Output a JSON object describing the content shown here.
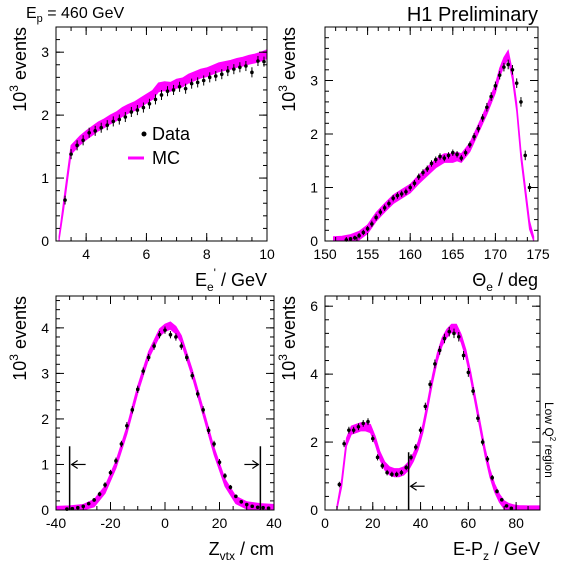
{
  "header": {
    "beam_energy": "E",
    "beam_energy_sub": "p",
    "beam_energy_value": " = 460 GeV",
    "preliminary": "H1 Preliminary",
    "side_note_a": "Low Q",
    "side_note_sup": "2",
    "side_note_b": " region"
  },
  "colors": {
    "mc": "#ff00ff",
    "data": "#000000",
    "cut_line": "#000000"
  },
  "chart_data": [
    {
      "type": "line",
      "name": "electron-energy",
      "xlabel": {
        "main": "E",
        "sub": "e",
        "sup": "'",
        "rest": " / GeV"
      },
      "ylabel": {
        "main": "10",
        "sup": "3",
        "rest": " events"
      },
      "xlim": [
        3,
        10
      ],
      "ylim": [
        0,
        3.4
      ],
      "xticks": [
        4,
        6,
        8,
        10
      ],
      "yticks": [
        0,
        1,
        2,
        3
      ],
      "legend": {
        "data_label": "Data",
        "mc_label": "MC",
        "placement": "middle-left"
      },
      "mc": {
        "x": [
          3.1,
          3.25,
          3.4,
          3.5,
          3.6,
          3.8,
          4.0,
          4.2,
          4.4,
          4.6,
          4.8,
          5.0,
          5.2,
          5.4,
          5.6,
          5.8,
          6.0,
          6.2,
          6.4,
          6.6,
          6.8,
          7.0,
          7.2,
          7.4,
          7.6,
          7.8,
          8.0,
          8.2,
          8.4,
          8.6,
          8.8,
          9.0,
          9.2,
          9.4,
          9.6,
          9.8,
          10.0
        ],
        "y": [
          0.0,
          0.55,
          1.1,
          1.45,
          1.5,
          1.6,
          1.68,
          1.75,
          1.82,
          1.87,
          1.93,
          1.98,
          2.05,
          2.1,
          2.14,
          2.2,
          2.26,
          2.32,
          2.44,
          2.46,
          2.45,
          2.5,
          2.52,
          2.58,
          2.62,
          2.66,
          2.68,
          2.72,
          2.76,
          2.78,
          2.8,
          2.83,
          2.85,
          2.88,
          2.9,
          2.93,
          2.97
        ],
        "band": 0.07
      },
      "data": {
        "x": [
          3.3,
          3.5,
          3.7,
          3.9,
          4.1,
          4.3,
          4.5,
          4.7,
          4.9,
          5.1,
          5.3,
          5.5,
          5.7,
          5.9,
          6.1,
          6.3,
          6.5,
          6.7,
          6.9,
          7.1,
          7.3,
          7.5,
          7.7,
          7.9,
          8.1,
          8.3,
          8.5,
          8.7,
          8.9,
          9.1,
          9.3,
          9.5,
          9.7,
          9.9
        ],
        "y": [
          0.65,
          1.38,
          1.52,
          1.6,
          1.72,
          1.75,
          1.8,
          1.84,
          1.9,
          1.93,
          1.97,
          2.05,
          2.08,
          2.12,
          2.18,
          2.25,
          2.32,
          2.38,
          2.4,
          2.45,
          2.42,
          2.5,
          2.52,
          2.55,
          2.6,
          2.62,
          2.65,
          2.7,
          2.73,
          2.76,
          2.78,
          2.68,
          2.86,
          2.85
        ],
        "err": [
          0.07,
          0.08,
          0.08,
          0.08,
          0.08,
          0.08,
          0.08,
          0.08,
          0.08,
          0.08,
          0.08,
          0.08,
          0.08,
          0.08,
          0.08,
          0.08,
          0.08,
          0.08,
          0.08,
          0.08,
          0.08,
          0.08,
          0.08,
          0.08,
          0.08,
          0.08,
          0.08,
          0.08,
          0.08,
          0.08,
          0.08,
          0.08,
          0.08,
          0.08
        ]
      }
    },
    {
      "type": "line",
      "name": "electron-polar-angle",
      "xlabel": {
        "main": "Θ",
        "sub": "e",
        "sup": "",
        "rest": " / deg"
      },
      "ylabel": {
        "main": "10",
        "sup": "3",
        "rest": " events"
      },
      "xlim": [
        150,
        175
      ],
      "ylim": [
        0,
        4.0
      ],
      "xticks": [
        150,
        155,
        160,
        165,
        170,
        175
      ],
      "yticks": [
        0,
        1,
        2,
        3
      ],
      "mc": {
        "x": [
          151,
          152,
          153,
          154,
          155,
          156,
          157,
          158,
          159,
          160,
          161,
          162,
          163,
          164,
          165,
          165.5,
          166,
          167,
          168,
          169,
          170,
          170.5,
          171,
          171.5,
          172,
          172.5,
          173,
          174,
          174.5
        ],
        "y": [
          0.0,
          0.01,
          0.04,
          0.1,
          0.22,
          0.45,
          0.62,
          0.78,
          0.88,
          0.98,
          1.15,
          1.3,
          1.45,
          1.55,
          1.55,
          1.58,
          1.55,
          1.75,
          2.1,
          2.45,
          2.85,
          3.15,
          3.35,
          3.48,
          3.1,
          2.5,
          1.6,
          0.3,
          0.0
        ],
        "band": 0.08
      },
      "data": {
        "x": [
          152.5,
          153.0,
          153.5,
          154.0,
          154.5,
          155.0,
          155.5,
          156.0,
          156.5,
          157.0,
          157.5,
          158.0,
          158.5,
          159.0,
          159.5,
          160.0,
          160.5,
          161.0,
          161.5,
          162.0,
          162.5,
          163.0,
          163.5,
          164.0,
          164.5,
          165.0,
          165.5,
          166.0,
          166.5,
          167.0,
          167.5,
          168.0,
          168.5,
          169.0,
          169.5,
          170.0,
          170.5,
          171.0,
          171.5,
          172.0,
          172.5,
          173.0,
          173.5,
          174.0
        ],
        "y": [
          0.02,
          0.04,
          0.06,
          0.1,
          0.16,
          0.23,
          0.32,
          0.44,
          0.54,
          0.62,
          0.7,
          0.8,
          0.85,
          0.88,
          0.92,
          1.0,
          1.08,
          1.2,
          1.28,
          1.35,
          1.45,
          1.52,
          1.58,
          1.55,
          1.6,
          1.65,
          1.62,
          1.55,
          1.65,
          1.8,
          1.95,
          2.1,
          2.3,
          2.5,
          2.7,
          2.9,
          3.1,
          3.25,
          3.3,
          3.2,
          2.95,
          2.6,
          1.6,
          1.0
        ],
        "err": [
          0.03,
          0.03,
          0.04,
          0.05,
          0.05,
          0.05,
          0.06,
          0.06,
          0.06,
          0.06,
          0.06,
          0.06,
          0.06,
          0.06,
          0.06,
          0.06,
          0.06,
          0.06,
          0.06,
          0.06,
          0.06,
          0.06,
          0.06,
          0.06,
          0.06,
          0.06,
          0.06,
          0.06,
          0.06,
          0.06,
          0.07,
          0.07,
          0.07,
          0.08,
          0.08,
          0.08,
          0.08,
          0.08,
          0.09,
          0.09,
          0.09,
          0.09,
          0.09,
          0.08
        ]
      }
    },
    {
      "type": "line",
      "name": "vertex-position",
      "xlabel": {
        "main": "Z",
        "sub": "vtx",
        "sup": "",
        "rest": " / cm"
      },
      "ylabel": {
        "main": "10",
        "sup": "3",
        "rest": " events"
      },
      "xlim": [
        -40,
        40
      ],
      "ylim": [
        0,
        4.7
      ],
      "xticks": [
        -40,
        -20,
        0,
        20,
        40
      ],
      "yticks": [
        0,
        1,
        2,
        3,
        4
      ],
      "cuts": [
        {
          "x": -35,
          "arrow": "right",
          "height": 1.4,
          "arrow_y": 1.0
        },
        {
          "x": 35,
          "arrow": "left",
          "height": 1.4,
          "arrow_y": 1.0
        }
      ],
      "mc": {
        "x": [
          -40,
          -35,
          -30,
          -26,
          -22,
          -18,
          -14,
          -10,
          -6,
          -2,
          0,
          2,
          4,
          6,
          10,
          14,
          18,
          22,
          26,
          30,
          35,
          40
        ],
        "y": [
          0.0,
          0.01,
          0.04,
          0.15,
          0.45,
          1.0,
          1.75,
          2.65,
          3.4,
          3.9,
          4.0,
          4.05,
          3.95,
          3.75,
          3.0,
          2.15,
          1.3,
          0.6,
          0.22,
          0.1,
          0.06,
          0.04
        ],
        "band": 0.08
      },
      "data": {
        "x": [
          -36,
          -34,
          -32,
          -30,
          -28,
          -26,
          -24,
          -22,
          -20,
          -18,
          -16,
          -14,
          -12,
          -10,
          -8,
          -6,
          -4,
          -2,
          0,
          2,
          4,
          6,
          8,
          10,
          12,
          14,
          16,
          18,
          20,
          22,
          24,
          26,
          28,
          30,
          32,
          34,
          36,
          38
        ],
        "y": [
          0.02,
          0.03,
          0.05,
          0.08,
          0.14,
          0.22,
          0.35,
          0.55,
          0.82,
          1.08,
          1.45,
          1.85,
          2.2,
          2.65,
          3.05,
          3.35,
          3.6,
          3.85,
          3.95,
          3.85,
          3.8,
          3.6,
          3.35,
          2.95,
          2.55,
          2.2,
          1.75,
          1.45,
          1.05,
          0.75,
          0.5,
          0.3,
          0.18,
          0.12,
          0.08,
          0.06,
          0.05,
          0.04
        ],
        "err": [
          0.02,
          0.02,
          0.03,
          0.03,
          0.04,
          0.04,
          0.05,
          0.06,
          0.06,
          0.07,
          0.07,
          0.08,
          0.08,
          0.08,
          0.08,
          0.08,
          0.08,
          0.08,
          0.08,
          0.08,
          0.08,
          0.08,
          0.08,
          0.08,
          0.08,
          0.08,
          0.08,
          0.07,
          0.07,
          0.06,
          0.05,
          0.04,
          0.04,
          0.03,
          0.03,
          0.03,
          0.03,
          0.02
        ]
      }
    },
    {
      "type": "line",
      "name": "longitudinal-balance",
      "xlabel": {
        "main": "E-P",
        "sub": "z",
        "sup": "",
        "rest": " / GeV"
      },
      "ylabel": {
        "main": "10",
        "sup": "3",
        "rest": " events"
      },
      "xlim": [
        0,
        90
      ],
      "ylim": [
        0,
        6.3
      ],
      "xticks": [
        0,
        20,
        40,
        60,
        80
      ],
      "yticks": [
        0,
        2,
        4,
        6
      ],
      "cuts": [
        {
          "x": 35,
          "arrow": "right",
          "height": 1.7,
          "arrow_y": 0.7
        }
      ],
      "mc": {
        "x": [
          5,
          7,
          9,
          11,
          13,
          15,
          17,
          19,
          21,
          23,
          25,
          27,
          29,
          31,
          33,
          35,
          37,
          39,
          41,
          43,
          45,
          47,
          49,
          51,
          53,
          55,
          57,
          59,
          61,
          63,
          65,
          67,
          69,
          71,
          73,
          75,
          77,
          79,
          81,
          85,
          90
        ],
        "y": [
          0.0,
          0.8,
          2.0,
          2.35,
          2.4,
          2.45,
          2.45,
          2.4,
          2.05,
          1.6,
          1.3,
          1.15,
          1.1,
          1.1,
          1.15,
          1.3,
          1.55,
          1.9,
          2.4,
          3.1,
          3.85,
          4.5,
          4.95,
          5.2,
          5.35,
          5.35,
          5.05,
          4.6,
          3.95,
          3.2,
          2.45,
          1.7,
          1.1,
          0.65,
          0.35,
          0.15,
          0.07,
          0.03,
          0.01,
          0.0,
          0.0
        ],
        "band": 0.12
      },
      "data": {
        "x": [
          6,
          8,
          10,
          12,
          14,
          16,
          18,
          20,
          22,
          24,
          26,
          28,
          30,
          32,
          34,
          36,
          38,
          40,
          42,
          44,
          46,
          48,
          50,
          52,
          54,
          56,
          58,
          60,
          62,
          64,
          66,
          68,
          70,
          72,
          74,
          76,
          78
        ],
        "y": [
          0.75,
          1.95,
          2.35,
          2.35,
          2.45,
          2.55,
          2.6,
          2.1,
          1.55,
          1.3,
          1.1,
          1.05,
          1.05,
          1.1,
          1.25,
          1.55,
          1.85,
          2.35,
          3.05,
          3.7,
          4.3,
          4.7,
          5.05,
          5.25,
          5.2,
          5.1,
          4.55,
          4.05,
          3.5,
          2.7,
          2.0,
          1.5,
          0.95,
          0.55,
          0.3,
          0.12,
          0.05
        ],
        "err": [
          0.08,
          0.1,
          0.1,
          0.1,
          0.1,
          0.1,
          0.1,
          0.1,
          0.09,
          0.09,
          0.08,
          0.08,
          0.08,
          0.08,
          0.08,
          0.09,
          0.09,
          0.1,
          0.11,
          0.12,
          0.13,
          0.13,
          0.14,
          0.14,
          0.14,
          0.14,
          0.13,
          0.13,
          0.12,
          0.11,
          0.1,
          0.09,
          0.08,
          0.06,
          0.05,
          0.04,
          0.03
        ]
      }
    }
  ]
}
